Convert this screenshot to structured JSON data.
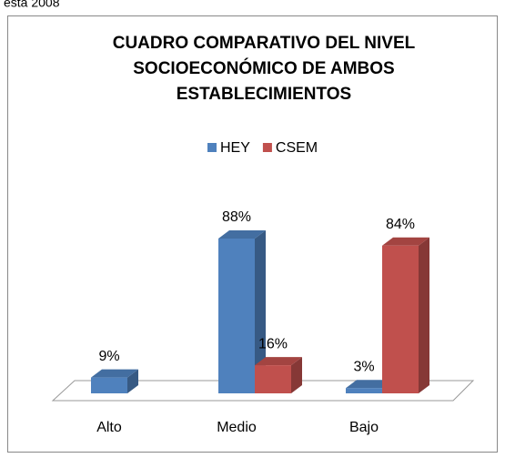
{
  "header_text": "esta 2008",
  "chart_data": {
    "type": "bar3d",
    "title": [
      "CUADRO COMPARATIVO DEL NIVEL",
      "SOCIOECONÓMICO DE AMBOS",
      "ESTABLECIMIENTOS"
    ],
    "categories": [
      "Alto",
      "Medio",
      "Bajo"
    ],
    "series": [
      {
        "name": "HEY",
        "color": "#4f81bd",
        "values": [
          9,
          88,
          3
        ],
        "value_labels": [
          "9%",
          "88%",
          "3%"
        ]
      },
      {
        "name": "CSEM",
        "color": "#c0504d",
        "values": [
          null,
          16,
          84
        ],
        "value_labels": [
          null,
          "16%",
          "84%"
        ]
      }
    ],
    "legend": "top"
  }
}
